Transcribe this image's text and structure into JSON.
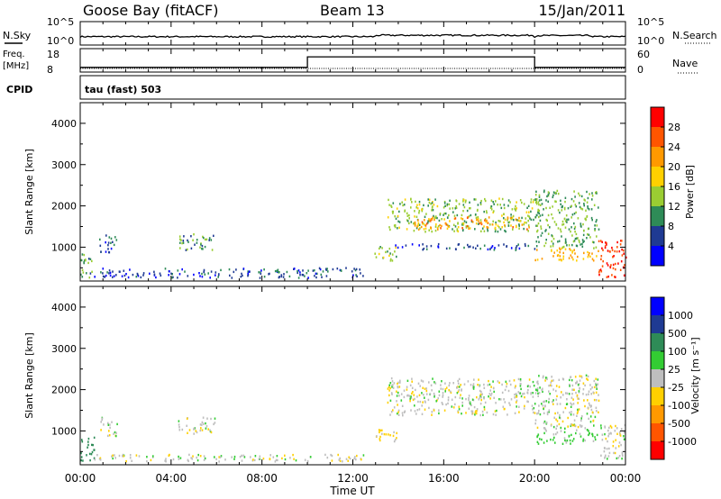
{
  "header": {
    "station": "Goose Bay (fitACF)",
    "beam": "Beam 13",
    "date": "15/Jan/2011"
  },
  "nsky_panel": {
    "left_label": "N.Sky",
    "right_label": "N.Search",
    "tick_top": "10^5",
    "tick_bottom": "10^0"
  },
  "freq_panel": {
    "left_label_line1": "Freq.",
    "left_label_line2": "[MHz]",
    "left_ticks": [
      "18",
      "8"
    ],
    "right_label": "Nave",
    "right_ticks": [
      "60",
      "0"
    ]
  },
  "cpid": {
    "label": "CPID",
    "program": "tau (fast) 503"
  },
  "x_axis": {
    "title": "Time UT",
    "ticks": [
      "00:00",
      "04:00",
      "08:00",
      "12:00",
      "16:00",
      "20:00",
      "00:00"
    ]
  },
  "power_panel": {
    "ylabel": "Slant Range [km]",
    "yticks": [
      "4000",
      "3000",
      "2000",
      "1000"
    ],
    "colorbar_label": "Power [dB]",
    "colorbar_ticks": [
      "28",
      "24",
      "20",
      "16",
      "12",
      "8",
      "4"
    ],
    "colorbar_colors": [
      "#ff0000",
      "#ff5500",
      "#ff9900",
      "#ffd000",
      "#9acd32",
      "#2e8b57",
      "#1f3a93",
      "#0000ff"
    ]
  },
  "velocity_panel": {
    "ylabel": "Slant Range [km]",
    "yticks": [
      "4000",
      "3000",
      "2000",
      "1000"
    ],
    "colorbar_label": "Velocity [m s⁻¹]",
    "colorbar_ticks": [
      "1000",
      "500",
      "100",
      "25",
      "-25",
      "-100",
      "-500",
      "-1000"
    ],
    "colorbar_colors": [
      "#0000ff",
      "#1f3a93",
      "#2e8b57",
      "#33cc33",
      "#bebebe",
      "#ffd000",
      "#ff9900",
      "#ff5500",
      "#ff0000"
    ]
  },
  "chart_data": {
    "type": "heatmap",
    "title": "Goose Bay (fitACF)",
    "xlabel": "Time UT",
    "ylabel": "Slant Range [km]",
    "xlim_hours": [
      0,
      24
    ],
    "ylim_km": [
      180,
      4500
    ],
    "grid": false,
    "frequency_steps_mhz": [
      {
        "start_h": 0,
        "end_h": 10,
        "value": 10
      },
      {
        "start_h": 10,
        "end_h": 20,
        "value": 14.5
      },
      {
        "start_h": 20,
        "end_h": 24,
        "value": 10
      }
    ],
    "power_regions": [
      {
        "t0": 0.0,
        "t1": 0.6,
        "r0": 280,
        "r1": 900,
        "power_db": 10
      },
      {
        "t0": 0.6,
        "t1": 12.5,
        "r0": 280,
        "r1": 520,
        "power_db": 6
      },
      {
        "t0": 0.8,
        "t1": 1.6,
        "r0": 900,
        "r1": 1350,
        "power_db": 7
      },
      {
        "t0": 4.3,
        "t1": 5.9,
        "r0": 950,
        "r1": 1350,
        "power_db": 10
      },
      {
        "t0": 12.9,
        "t1": 13.9,
        "r0": 700,
        "r1": 1050,
        "power_db": 14
      },
      {
        "t0": 13.5,
        "t1": 20.2,
        "r0": 1400,
        "r1": 2200,
        "power_db": 13
      },
      {
        "t0": 14.6,
        "t1": 19.8,
        "r0": 1450,
        "r1": 1750,
        "power_db": 22
      },
      {
        "t0": 13.8,
        "t1": 20.0,
        "r0": 950,
        "r1": 1100,
        "power_db": 6
      },
      {
        "t0": 20.0,
        "t1": 22.8,
        "r0": 700,
        "r1": 1000,
        "power_db": 20
      },
      {
        "t0": 20.0,
        "t1": 22.8,
        "r0": 1000,
        "r1": 2400,
        "power_db": 12
      },
      {
        "t0": 22.8,
        "t1": 24.0,
        "r0": 300,
        "r1": 1200,
        "power_db": 28
      }
    ],
    "velocity_regions": [
      {
        "t0": 0.0,
        "t1": 0.6,
        "r0": 280,
        "r1": 900,
        "velocity_ms": 300
      },
      {
        "t0": 0.6,
        "t1": 12.5,
        "r0": 280,
        "r1": 450,
        "velocity_ms": 0
      },
      {
        "t0": 0.8,
        "t1": 1.6,
        "r0": 900,
        "r1": 1350,
        "velocity_ms": 0
      },
      {
        "t0": 4.3,
        "t1": 5.9,
        "r0": 950,
        "r1": 1350,
        "velocity_ms": 0
      },
      {
        "t0": 12.9,
        "t1": 13.9,
        "r0": 700,
        "r1": 1050,
        "velocity_ms": -50
      },
      {
        "t0": 13.5,
        "t1": 20.2,
        "r0": 1400,
        "r1": 2300,
        "velocity_ms": 0
      },
      {
        "t0": 20.0,
        "t1": 22.8,
        "r0": 700,
        "r1": 1000,
        "velocity_ms": 50
      },
      {
        "t0": 20.0,
        "t1": 22.8,
        "r0": 1000,
        "r1": 2400,
        "velocity_ms": 0
      },
      {
        "t0": 22.8,
        "t1": 24.0,
        "r0": 300,
        "r1": 1200,
        "velocity_ms": 0
      }
    ]
  }
}
